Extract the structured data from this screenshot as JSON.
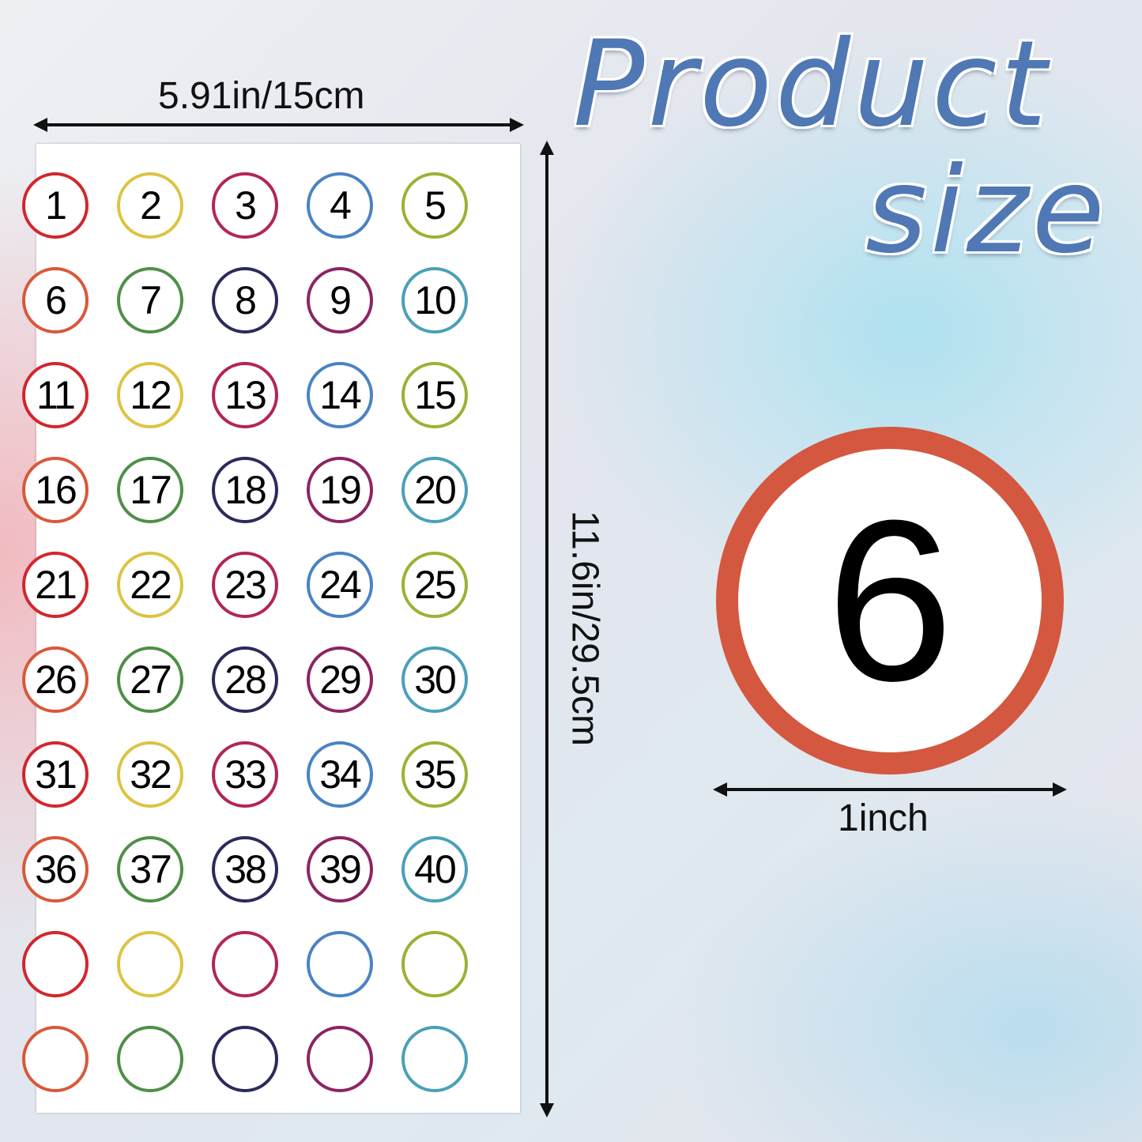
{
  "title": {
    "line1": "Product",
    "line2": "size"
  },
  "dimensions": {
    "width": "5.91in/15cm",
    "height": "11.6in/29.5cm",
    "sticker_diameter": "1inch"
  },
  "colors": {
    "row_odd": [
      "#d2262e",
      "#dcc443",
      "#b3245a",
      "#4a83c4",
      "#98b334"
    ],
    "row_even": [
      "#d9583a",
      "#4f8f48",
      "#2b2a5c",
      "#8d2463",
      "#4aa0b8"
    ],
    "big_ring": "#d4573f"
  },
  "stickers": [
    "1",
    "2",
    "3",
    "4",
    "5",
    "6",
    "7",
    "8",
    "9",
    "10",
    "11",
    "12",
    "13",
    "14",
    "15",
    "16",
    "17",
    "18",
    "19",
    "20",
    "21",
    "22",
    "23",
    "24",
    "25",
    "26",
    "27",
    "28",
    "29",
    "30",
    "31",
    "32",
    "33",
    "34",
    "35",
    "36",
    "37",
    "38",
    "39",
    "40",
    "",
    "",
    "",
    "",
    "",
    "",
    "",
    "",
    "",
    ""
  ],
  "big_sticker_number": "6"
}
